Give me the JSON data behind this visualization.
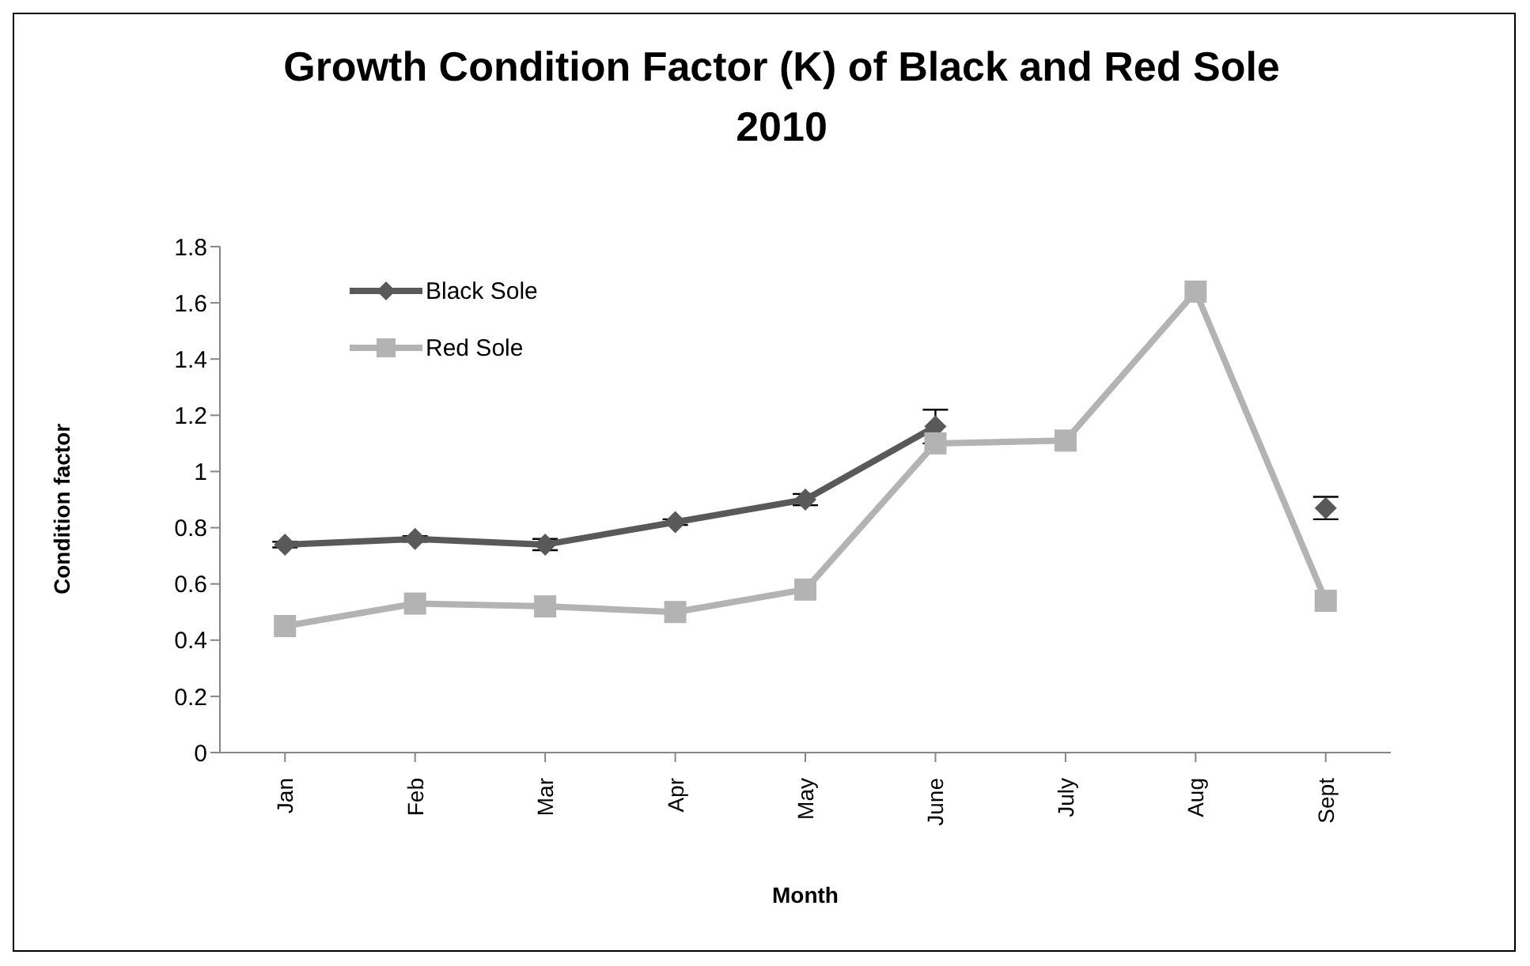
{
  "chart_data": {
    "type": "line",
    "title": "Growth Condition Factor (K) of Black and Red Sole 2010",
    "xlabel": "Month",
    "ylabel": "Condition factor",
    "categories": [
      "Jan",
      "Feb",
      "Mar",
      "Apr",
      "May",
      "June",
      "July",
      "Aug",
      "Sept"
    ],
    "series": [
      {
        "name": "Black Sole",
        "color": "#595959",
        "marker": "diamond",
        "values": [
          0.74,
          0.76,
          0.74,
          0.82,
          0.9,
          1.16,
          null,
          null,
          0.87
        ],
        "errors": [
          0.01,
          0.01,
          0.02,
          0.01,
          0.02,
          0.06,
          null,
          null,
          0.04
        ]
      },
      {
        "name": "Red Sole",
        "color": "#b3b3b3",
        "marker": "square",
        "values": [
          0.45,
          0.53,
          0.52,
          0.5,
          0.58,
          1.1,
          1.11,
          1.64,
          0.54
        ]
      }
    ],
    "ylim": [
      0,
      1.8
    ],
    "yticks": [
      0,
      0.2,
      0.4,
      0.6,
      0.8,
      1,
      1.2,
      1.4,
      1.6,
      1.8
    ],
    "legend": "top left",
    "line_style": "solid"
  }
}
